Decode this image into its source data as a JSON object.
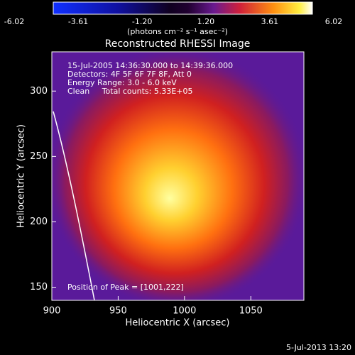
{
  "chart_data": {
    "type": "heatmap",
    "title": "Reconstructed RHESSI Image",
    "clim": [
      -6.02,
      6.02
    ],
    "cticks": [
      -6.02,
      -3.61,
      {
        "value": -1.2,
        "label": "-1.20"
      },
      {
        "value": 1.2,
        "label": "1.20"
      },
      3.61,
      6.02
    ],
    "colorbar_label": "(photons cm⁻² s⁻¹ asec⁻²)",
    "x_label": "Heliocentric X (arcsec)",
    "y_label": "Heliocentric Y (arcsec)",
    "xlim": [
      900,
      1090
    ],
    "xticks": [
      900,
      950,
      1000,
      1050
    ],
    "ylim": [
      140,
      330
    ],
    "yticks": [
      150,
      200,
      250,
      300
    ],
    "annotations": [
      "15-Jul-2005 14:36:30.000 to 14:39:36.000",
      "Detectors: 4F 5F 6F 7F 8F, Att 0",
      "Energy Range: 3.0 - 6.0 keV",
      "Clean     Total counts: 5.33E+05"
    ],
    "peak_label": "Position of Peak = [1001,222]",
    "timestamp": "5-Jul-2013 13:20"
  }
}
